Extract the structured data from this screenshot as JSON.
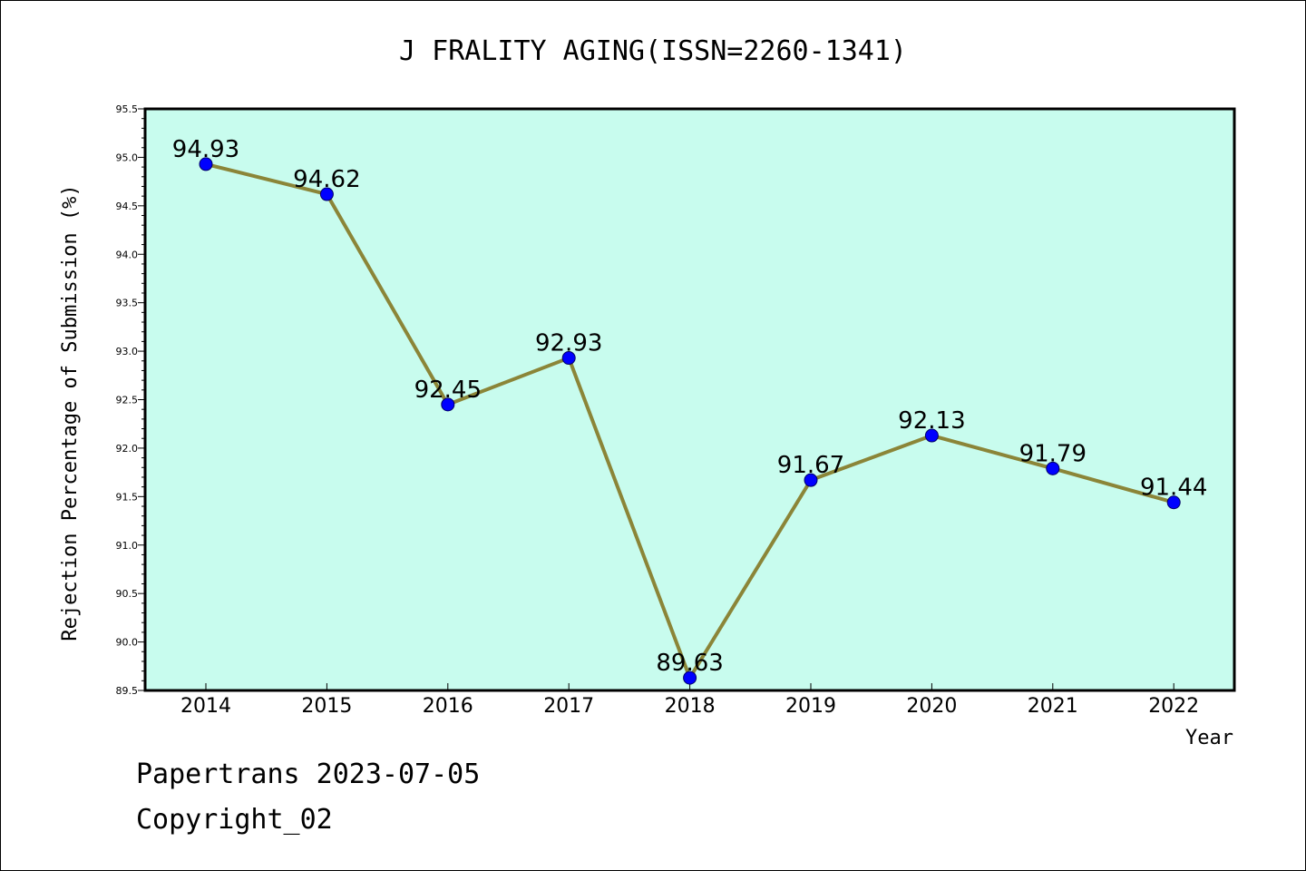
{
  "chart_data": {
    "type": "line",
    "title": "J FRALITY AGING(ISSN=2260-1341)",
    "xlabel": "Year",
    "ylabel": "Rejection Percentage of Submission (%)",
    "categories": [
      "2014",
      "2015",
      "2016",
      "2017",
      "2018",
      "2019",
      "2020",
      "2021",
      "2022"
    ],
    "series": [
      {
        "values": [
          94.93,
          94.62,
          92.45,
          92.93,
          89.63,
          91.67,
          92.13,
          91.79,
          91.44
        ],
        "labels": [
          "94.93",
          "94.62",
          "92.45",
          "92.93",
          "89.63",
          "91.67",
          "92.13",
          "91.79",
          "91.44"
        ]
      }
    ],
    "ylim": [
      89.5,
      95.5
    ],
    "yticks": [
      "89.5",
      "90.0",
      "90.5",
      "91.0",
      "91.5",
      "92.0",
      "92.5",
      "93.0",
      "93.5",
      "94.0",
      "94.5",
      "95.0",
      "95.5"
    ],
    "grid": false,
    "colors": {
      "plot_background": "#c8fcee",
      "line": "#8b8538",
      "marker": "#0000ff"
    }
  },
  "footer": {
    "source": "Papertrans 2023-07-05",
    "copyright": "Copyright_02"
  }
}
